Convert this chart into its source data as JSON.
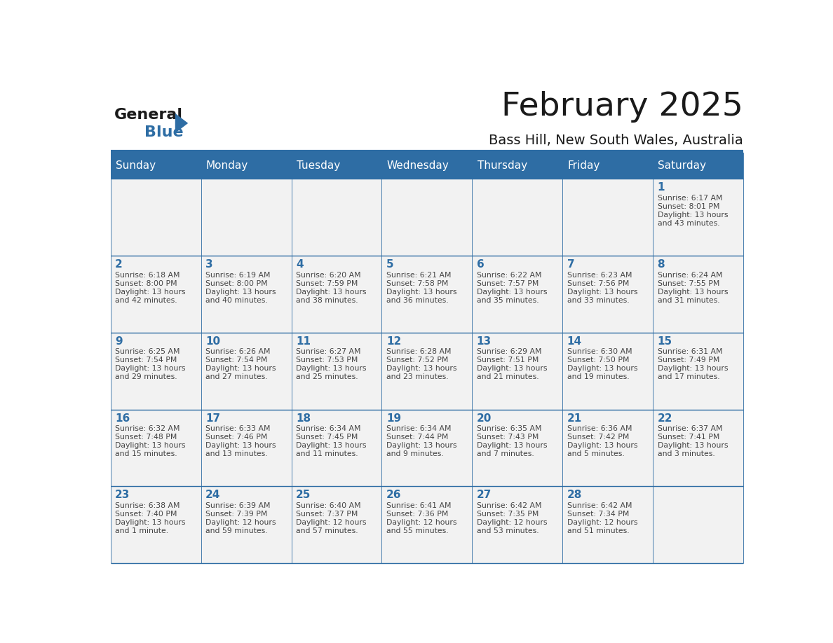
{
  "title": "February 2025",
  "subtitle": "Bass Hill, New South Wales, Australia",
  "header_bg": "#2E6DA4",
  "header_text_color": "#FFFFFF",
  "border_color": "#2E6DA4",
  "day_number_color": "#2E6DA4",
  "text_color": "#444444",
  "cell_bg": "#F2F2F2",
  "days_of_week": [
    "Sunday",
    "Monday",
    "Tuesday",
    "Wednesday",
    "Thursday",
    "Friday",
    "Saturday"
  ],
  "weeks": [
    [
      {
        "day": null,
        "info": null
      },
      {
        "day": null,
        "info": null
      },
      {
        "day": null,
        "info": null
      },
      {
        "day": null,
        "info": null
      },
      {
        "day": null,
        "info": null
      },
      {
        "day": null,
        "info": null
      },
      {
        "day": 1,
        "info": "Sunrise: 6:17 AM\nSunset: 8:01 PM\nDaylight: 13 hours\nand 43 minutes."
      }
    ],
    [
      {
        "day": 2,
        "info": "Sunrise: 6:18 AM\nSunset: 8:00 PM\nDaylight: 13 hours\nand 42 minutes."
      },
      {
        "day": 3,
        "info": "Sunrise: 6:19 AM\nSunset: 8:00 PM\nDaylight: 13 hours\nand 40 minutes."
      },
      {
        "day": 4,
        "info": "Sunrise: 6:20 AM\nSunset: 7:59 PM\nDaylight: 13 hours\nand 38 minutes."
      },
      {
        "day": 5,
        "info": "Sunrise: 6:21 AM\nSunset: 7:58 PM\nDaylight: 13 hours\nand 36 minutes."
      },
      {
        "day": 6,
        "info": "Sunrise: 6:22 AM\nSunset: 7:57 PM\nDaylight: 13 hours\nand 35 minutes."
      },
      {
        "day": 7,
        "info": "Sunrise: 6:23 AM\nSunset: 7:56 PM\nDaylight: 13 hours\nand 33 minutes."
      },
      {
        "day": 8,
        "info": "Sunrise: 6:24 AM\nSunset: 7:55 PM\nDaylight: 13 hours\nand 31 minutes."
      }
    ],
    [
      {
        "day": 9,
        "info": "Sunrise: 6:25 AM\nSunset: 7:54 PM\nDaylight: 13 hours\nand 29 minutes."
      },
      {
        "day": 10,
        "info": "Sunrise: 6:26 AM\nSunset: 7:54 PM\nDaylight: 13 hours\nand 27 minutes."
      },
      {
        "day": 11,
        "info": "Sunrise: 6:27 AM\nSunset: 7:53 PM\nDaylight: 13 hours\nand 25 minutes."
      },
      {
        "day": 12,
        "info": "Sunrise: 6:28 AM\nSunset: 7:52 PM\nDaylight: 13 hours\nand 23 minutes."
      },
      {
        "day": 13,
        "info": "Sunrise: 6:29 AM\nSunset: 7:51 PM\nDaylight: 13 hours\nand 21 minutes."
      },
      {
        "day": 14,
        "info": "Sunrise: 6:30 AM\nSunset: 7:50 PM\nDaylight: 13 hours\nand 19 minutes."
      },
      {
        "day": 15,
        "info": "Sunrise: 6:31 AM\nSunset: 7:49 PM\nDaylight: 13 hours\nand 17 minutes."
      }
    ],
    [
      {
        "day": 16,
        "info": "Sunrise: 6:32 AM\nSunset: 7:48 PM\nDaylight: 13 hours\nand 15 minutes."
      },
      {
        "day": 17,
        "info": "Sunrise: 6:33 AM\nSunset: 7:46 PM\nDaylight: 13 hours\nand 13 minutes."
      },
      {
        "day": 18,
        "info": "Sunrise: 6:34 AM\nSunset: 7:45 PM\nDaylight: 13 hours\nand 11 minutes."
      },
      {
        "day": 19,
        "info": "Sunrise: 6:34 AM\nSunset: 7:44 PM\nDaylight: 13 hours\nand 9 minutes."
      },
      {
        "day": 20,
        "info": "Sunrise: 6:35 AM\nSunset: 7:43 PM\nDaylight: 13 hours\nand 7 minutes."
      },
      {
        "day": 21,
        "info": "Sunrise: 6:36 AM\nSunset: 7:42 PM\nDaylight: 13 hours\nand 5 minutes."
      },
      {
        "day": 22,
        "info": "Sunrise: 6:37 AM\nSunset: 7:41 PM\nDaylight: 13 hours\nand 3 minutes."
      }
    ],
    [
      {
        "day": 23,
        "info": "Sunrise: 6:38 AM\nSunset: 7:40 PM\nDaylight: 13 hours\nand 1 minute."
      },
      {
        "day": 24,
        "info": "Sunrise: 6:39 AM\nSunset: 7:39 PM\nDaylight: 12 hours\nand 59 minutes."
      },
      {
        "day": 25,
        "info": "Sunrise: 6:40 AM\nSunset: 7:37 PM\nDaylight: 12 hours\nand 57 minutes."
      },
      {
        "day": 26,
        "info": "Sunrise: 6:41 AM\nSunset: 7:36 PM\nDaylight: 12 hours\nand 55 minutes."
      },
      {
        "day": 27,
        "info": "Sunrise: 6:42 AM\nSunset: 7:35 PM\nDaylight: 12 hours\nand 53 minutes."
      },
      {
        "day": 28,
        "info": "Sunrise: 6:42 AM\nSunset: 7:34 PM\nDaylight: 12 hours\nand 51 minutes."
      },
      {
        "day": null,
        "info": null
      }
    ]
  ],
  "logo_text_general": "General",
  "logo_text_blue": "Blue",
  "logo_color_general": "#1a1a1a",
  "logo_color_blue": "#2E6DA4",
  "logo_triangle_color": "#2E6DA4"
}
